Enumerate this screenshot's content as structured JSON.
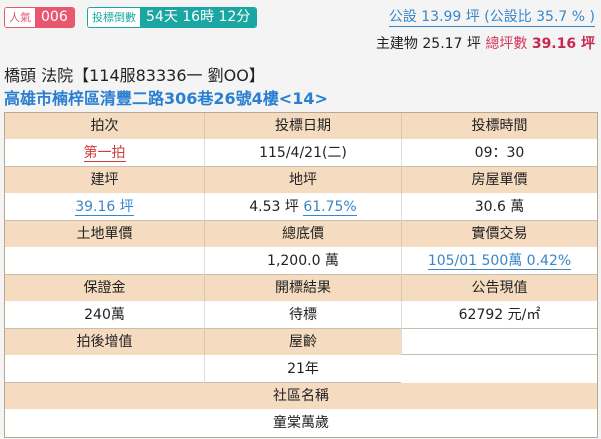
{
  "popularity": {
    "label": "人氣",
    "value": "006"
  },
  "countdown": {
    "label": "投標倒數",
    "value": "54天 16時 12分"
  },
  "public_area": "公設 13.99 坪 (公設比 35.7 % )",
  "main_building": {
    "label": "主建物 25.17 坪",
    "total_label": "總坪數",
    "total_value": "39.16 坪"
  },
  "title": "橋頭 法院【114服83336一 劉OO】",
  "address": "高雄市楠梓區清豐二路306巷26號4樓<14>",
  "colors": {
    "header_bg": "#f5dcc1",
    "popularity": "#e8566f",
    "countdown": "#1aa6a2",
    "link": "#3a86c8"
  },
  "table": {
    "auction_round": {
      "label": "拍次",
      "value": "第一拍"
    },
    "bid_date": {
      "label": "投標日期",
      "value": "115/4/21(二)"
    },
    "bid_time": {
      "label": "投標時間",
      "value": "09：30"
    },
    "building_area": {
      "label": "建坪",
      "value": "39.16 坪"
    },
    "land_area": {
      "label": "地坪",
      "value": "4.53 坪",
      "pct": "61.75%"
    },
    "house_unit_price": {
      "label": "房屋單價",
      "value": "30.6 萬"
    },
    "land_unit_price": {
      "label": "土地單價",
      "value": ""
    },
    "reserve_price": {
      "label": "總底價",
      "value": "1,200.0 萬"
    },
    "actual_trade": {
      "label": "實價交易",
      "value": "105/01 500萬 0.42%"
    },
    "deposit": {
      "label": "保證金",
      "value": "240萬"
    },
    "bid_result": {
      "label": "開標結果",
      "value": "待標"
    },
    "announced_value": {
      "label": "公告現值",
      "value": "62792 元/㎡"
    },
    "post_auction_gain": {
      "label": "拍後增值",
      "value": ""
    },
    "house_age": {
      "label": "屋齡",
      "value": "21年"
    },
    "community": {
      "label": "社區名稱",
      "value": "童棠萬歲"
    }
  }
}
